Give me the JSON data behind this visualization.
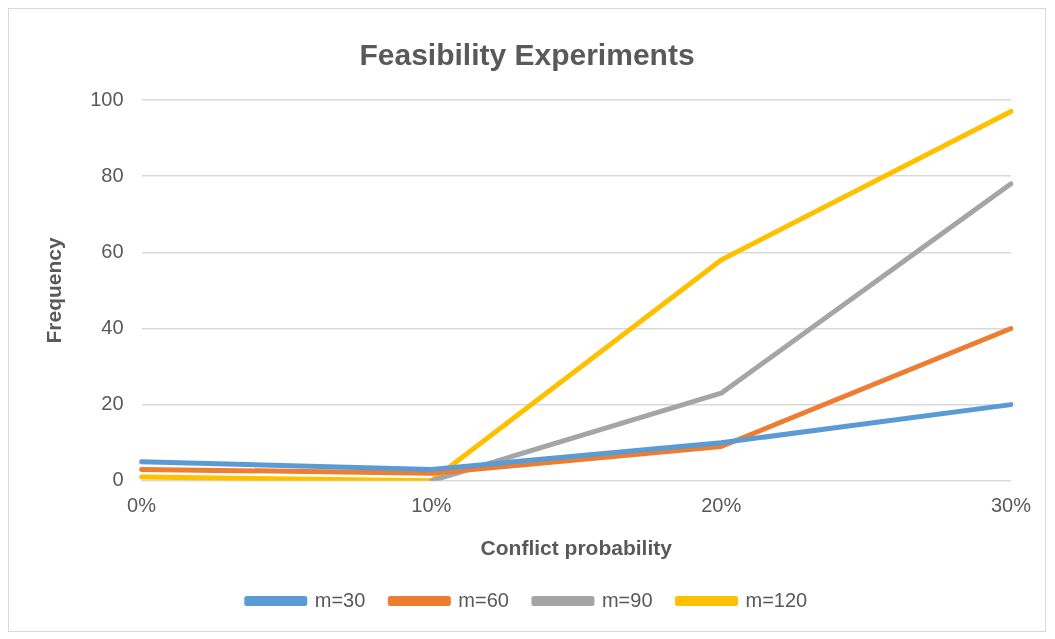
{
  "chart_data": {
    "type": "line",
    "title": "Feasibility Experiments",
    "xlabel": "Conflict probability",
    "ylabel": "Frequency",
    "categories": [
      "0%",
      "10%",
      "20%",
      "30%"
    ],
    "series": [
      {
        "name": "m=30",
        "color": "#5b9bd5",
        "values": [
          5,
          3,
          10,
          20
        ]
      },
      {
        "name": "m=60",
        "color": "#ed7d31",
        "values": [
          3,
          2,
          9,
          40
        ]
      },
      {
        "name": "m=90",
        "color": "#a5a5a5",
        "values": [
          null,
          0,
          23,
          78
        ]
      },
      {
        "name": "m=120",
        "color": "#ffc000",
        "values": [
          1,
          0,
          58,
          97
        ]
      }
    ],
    "ylim": [
      0,
      100
    ],
    "yticks": [
      0,
      20,
      40,
      60,
      80,
      100
    ],
    "grid": "y",
    "legend": "bottom",
    "marker": "none",
    "line_style": "solid"
  }
}
